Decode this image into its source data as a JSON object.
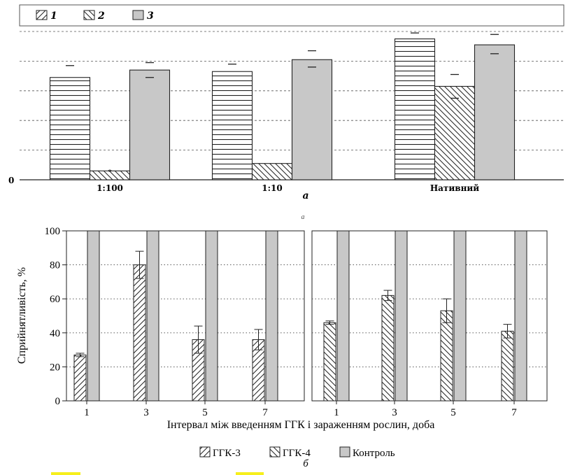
{
  "colors": {
    "ink": "#222222",
    "bar_fill_gray": "#c8c8c8",
    "grid": "#555555",
    "highlight": "#f6ef1c"
  },
  "chart_data": [
    {
      "id": "a",
      "type": "bar",
      "panel_label": "а",
      "stray_label": "a",
      "legend": [
        {
          "key": "1",
          "pattern": "hatch-up"
        },
        {
          "key": "2",
          "pattern": "hatch-down"
        },
        {
          "key": "3",
          "pattern": "solid-gray"
        }
      ],
      "categories": [
        "1:100",
        "1:10",
        "Нативний"
      ],
      "y_zero_label": "0",
      "ylim": [
        0,
        100
      ],
      "grid": "dashed",
      "series": [
        {
          "key": "1",
          "pattern": "horizontal-lines",
          "values": [
            69,
            73,
            95
          ],
          "err_upper": [
            77,
            78,
            99
          ],
          "err_lower": [
            null,
            null,
            null
          ]
        },
        {
          "key": "2",
          "pattern": "diagonal",
          "values": [
            6,
            11,
            63
          ],
          "err_upper": [
            null,
            null,
            71
          ],
          "err_lower": [
            null,
            null,
            55
          ],
          "marker": [
            "*",
            null,
            null
          ]
        },
        {
          "key": "3",
          "pattern": "solid-gray",
          "values": [
            74,
            81,
            91
          ],
          "err_upper": [
            79,
            87,
            98
          ],
          "err_lower": [
            69,
            76,
            85
          ]
        }
      ]
    },
    {
      "id": "b",
      "type": "bar",
      "panel_label": "б",
      "ylabel": "Сприйнятливість, %",
      "xlabel": "Інтервал між введенням ГГК і зараженням рослин, доба",
      "yticks": [
        0,
        20,
        40,
        60,
        80,
        100
      ],
      "ylim": [
        0,
        100
      ],
      "grid": "dotted",
      "legend": [
        {
          "label": "ГГК-3",
          "pattern": "hatch-up"
        },
        {
          "label": "ГГК-4",
          "pattern": "hatch-down"
        },
        {
          "label": "Контроль",
          "pattern": "solid-gray"
        }
      ],
      "panels": [
        {
          "categories": [
            "1",
            "3",
            "5",
            "7"
          ],
          "series": [
            {
              "name": "ГГК-3",
              "values": [
                27,
                80,
                36,
                36
              ],
              "errors": [
                1,
                8,
                8,
                6
              ]
            },
            {
              "name": "Контроль",
              "values": [
                100,
                100,
                100,
                100
              ]
            }
          ]
        },
        {
          "categories": [
            "1",
            "3",
            "5",
            "7"
          ],
          "series": [
            {
              "name": "ГГК-4",
              "values": [
                46,
                62,
                53,
                41
              ],
              "errors": [
                1,
                3,
                7,
                4
              ]
            },
            {
              "name": "Контроль",
              "values": [
                100,
                100,
                100,
                100
              ]
            }
          ]
        }
      ]
    }
  ]
}
